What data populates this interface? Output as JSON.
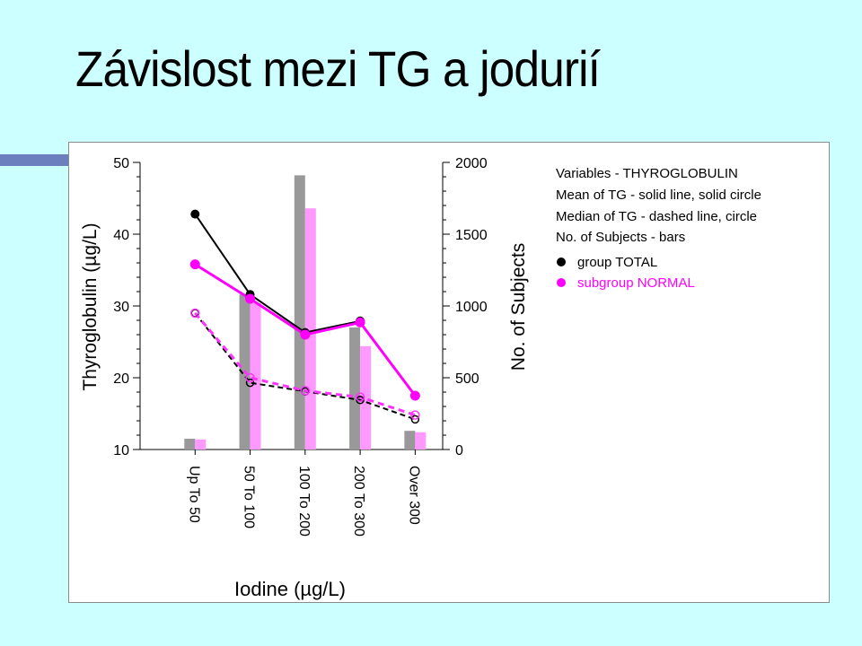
{
  "slide": {
    "title": "Závislost mezi TG a jodurií"
  },
  "colors": {
    "background": "#ccffff",
    "accent_bar": "#6b7fbf",
    "total_bar": "#999999",
    "normal_bar": "#ff99ff",
    "total_line": "#000000",
    "normal_line": "#ff00ff",
    "total_median_line": "#000000",
    "normal_median_line": "#ff33ff"
  },
  "legend": {
    "lines": [
      "Variables - THYROGLOBULIN",
      "Mean of TG - solid line, solid circle",
      "Median of TG - dashed line, circle",
      "No. of Subjects - bars"
    ],
    "series": [
      {
        "label": "group TOTAL",
        "color": "#000000"
      },
      {
        "label": "subgroup NORMAL",
        "color": "#ff00ff"
      }
    ]
  },
  "chart_data": {
    "type": "bar+line",
    "categories": [
      "Up To 50",
      "50 To 100",
      "100 To 200",
      "200 To 300",
      "Over 300"
    ],
    "xlabel": "Iodine (µg/L)",
    "ylabel_left": "Thyroglobulin (µg/L)",
    "ylabel_right": "No. of Subjects",
    "ylim_left": [
      10,
      50
    ],
    "ylim_right": [
      0,
      2000
    ],
    "yticks_left": [
      "10",
      "20",
      "30",
      "40",
      "50"
    ],
    "yticks_right": [
      "0",
      "500",
      "1000",
      "1500",
      "2000"
    ],
    "bars": [
      {
        "name": "group TOTAL",
        "values": [
          75,
          1080,
          1910,
          850,
          130
        ]
      },
      {
        "name": "subgroup NORMAL",
        "values": [
          70,
          1020,
          1680,
          720,
          120
        ]
      }
    ],
    "lines": [
      {
        "name": "group TOTAL",
        "stat": "mean",
        "values": [
          42.8,
          31.6,
          26.3,
          27.9,
          null
        ]
      },
      {
        "name": "subgroup NORMAL",
        "stat": "mean",
        "values": [
          35.8,
          31.0,
          26.0,
          27.7,
          17.5
        ]
      },
      {
        "name": "group TOTAL",
        "stat": "median",
        "values": [
          29.0,
          19.3,
          18.1,
          16.9,
          14.2
        ]
      },
      {
        "name": "subgroup NORMAL",
        "stat": "median",
        "values": [
          29.0,
          20.0,
          18.2,
          17.3,
          14.8
        ]
      }
    ]
  }
}
